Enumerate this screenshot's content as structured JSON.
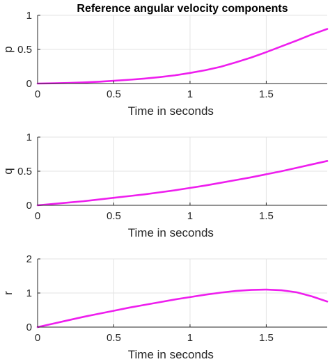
{
  "figure": {
    "title": "Reference angular velocity components"
  },
  "chart_data": [
    {
      "type": "line",
      "title": "Reference angular velocity components",
      "xlabel": "Time in seconds",
      "ylabel": "p",
      "xlim": [
        0,
        1.9
      ],
      "ylim": [
        0,
        1
      ],
      "xticks": [
        0,
        0.5,
        1,
        1.5
      ],
      "yticks": [
        0,
        0.5,
        1
      ],
      "grid": true,
      "line_color": "#ee1eee",
      "series": [
        {
          "x": [
            0,
            0.1,
            0.2,
            0.3,
            0.4,
            0.5,
            0.6,
            0.7,
            0.8,
            0.9,
            1.0,
            1.1,
            1.2,
            1.3,
            1.4,
            1.5,
            1.6,
            1.7,
            1.8,
            1.9
          ],
          "values": [
            0.0,
            0.003,
            0.008,
            0.016,
            0.026,
            0.04,
            0.055,
            0.072,
            0.094,
            0.12,
            0.155,
            0.195,
            0.245,
            0.31,
            0.38,
            0.46,
            0.545,
            0.63,
            0.72,
            0.8
          ]
        }
      ]
    },
    {
      "type": "line",
      "title": "",
      "xlabel": "Time in seconds",
      "ylabel": "q",
      "xlim": [
        0,
        1.9
      ],
      "ylim": [
        0,
        1
      ],
      "xticks": [
        0,
        0.5,
        1,
        1.5
      ],
      "yticks": [
        0,
        0.5,
        1
      ],
      "grid": true,
      "line_color": "#ee1eee",
      "series": [
        {
          "x": [
            0,
            0.1,
            0.2,
            0.3,
            0.4,
            0.5,
            0.6,
            0.7,
            0.8,
            0.9,
            1.0,
            1.1,
            1.2,
            1.3,
            1.4,
            1.5,
            1.6,
            1.7,
            1.8,
            1.9
          ],
          "values": [
            0.0,
            0.02,
            0.04,
            0.06,
            0.085,
            0.11,
            0.135,
            0.16,
            0.19,
            0.22,
            0.255,
            0.29,
            0.33,
            0.37,
            0.41,
            0.455,
            0.5,
            0.55,
            0.6,
            0.65
          ]
        }
      ]
    },
    {
      "type": "line",
      "title": "",
      "xlabel": "Time in seconds",
      "ylabel": "r",
      "xlim": [
        0,
        1.9
      ],
      "ylim": [
        0,
        2
      ],
      "xticks": [
        0,
        0.5,
        1,
        1.5
      ],
      "yticks": [
        0,
        1,
        2
      ],
      "grid": true,
      "line_color": "#ee1eee",
      "series": [
        {
          "x": [
            0,
            0.1,
            0.2,
            0.3,
            0.4,
            0.5,
            0.6,
            0.7,
            0.8,
            0.9,
            1.0,
            1.1,
            1.2,
            1.3,
            1.4,
            1.5,
            1.6,
            1.7,
            1.8,
            1.9
          ],
          "values": [
            0.0,
            0.1,
            0.2,
            0.3,
            0.39,
            0.48,
            0.57,
            0.65,
            0.73,
            0.81,
            0.88,
            0.95,
            1.01,
            1.06,
            1.09,
            1.1,
            1.08,
            1.02,
            0.9,
            0.75
          ]
        }
      ]
    }
  ]
}
